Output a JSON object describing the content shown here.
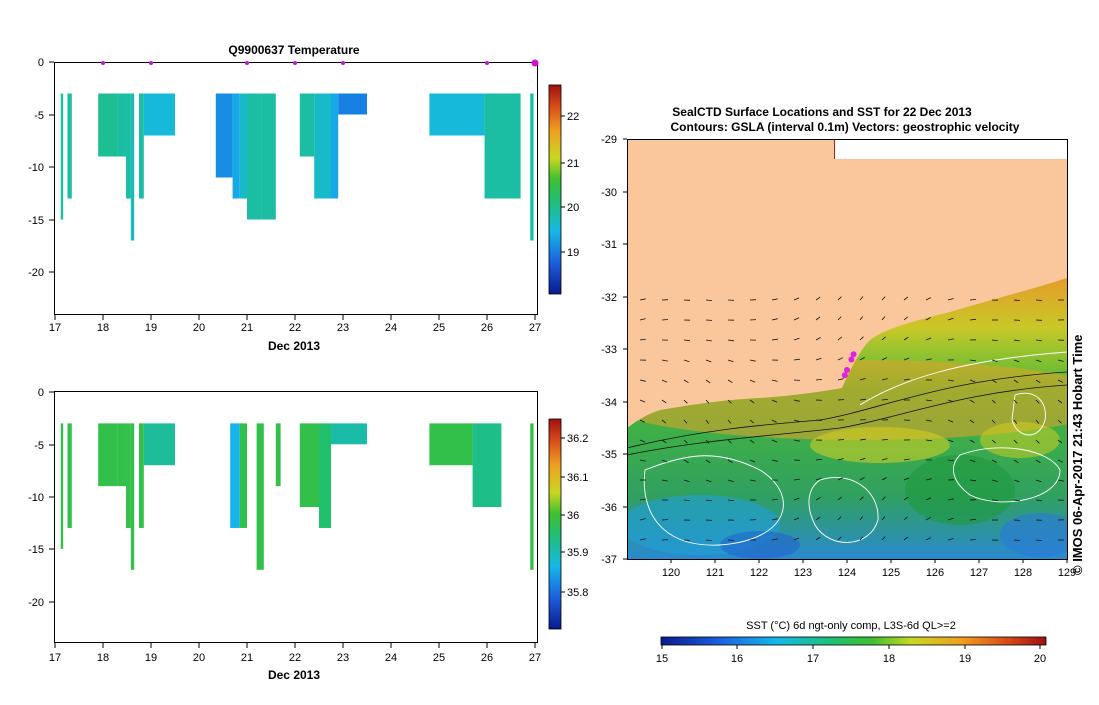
{
  "top_chart": {
    "title": "Q9900637  Temperature",
    "xlabel": "Dec 2013",
    "x_ticks": [
      "17",
      "18",
      "19",
      "20",
      "21",
      "22",
      "23",
      "24",
      "25",
      "26",
      "27"
    ],
    "y_ticks": [
      "0",
      "-5",
      "-10",
      "-15",
      "-20"
    ],
    "colorbar_ticks": [
      "22",
      "21",
      "20",
      "19"
    ]
  },
  "bottom_chart": {
    "title": "",
    "xlabel": "Dec 2013",
    "x_ticks": [
      "17",
      "18",
      "19",
      "20",
      "21",
      "22",
      "23",
      "24",
      "25",
      "26",
      "27"
    ],
    "y_ticks": [
      "0",
      "-5",
      "-10",
      "-15",
      "-20"
    ],
    "colorbar_ticks": [
      "36.2",
      "36.1",
      "36",
      "35.9",
      "35.8"
    ]
  },
  "map": {
    "title_line1": "SealCTD Surface Locations and SST for 22 Dec 2013",
    "title_line2": "Contours: GSLA (interval 0.1m) Vectors: geostrophic velocity",
    "lon_ticks": [
      "120",
      "121",
      "122",
      "123",
      "124",
      "125",
      "126",
      "127",
      "128",
      "129"
    ],
    "lat_ticks": [
      "-29",
      "-30",
      "-31",
      "-32",
      "-33",
      "-34",
      "-35",
      "-36",
      "-37"
    ],
    "colorbar_label": "SST (°C) 6d ngt-only comp, L3S-6d QL>=2",
    "colorbar_ticks": [
      "15",
      "16",
      "17",
      "18",
      "19",
      "20"
    ],
    "credit": "© IMOS 06-Apr-2017 21:43 Hobart Time"
  },
  "chart_data": [
    {
      "type": "heatmap",
      "title": "Q9900637  Temperature",
      "xlabel": "Dec 2013",
      "ylabel": "",
      "xlim": [
        17,
        27
      ],
      "ylim": [
        -24,
        0
      ],
      "colorbar_range": [
        18.3,
        22.7
      ],
      "profile_markers_x": [
        18.0,
        19.0,
        21.0,
        22.0,
        23.0,
        26.0,
        27.0
      ],
      "profiles": [
        {
          "x0": 17.12,
          "x1": 17.17,
          "top": -3,
          "bottom": -15,
          "value": 20.0
        },
        {
          "x0": 17.26,
          "x1": 17.35,
          "top": -3,
          "bottom": -13,
          "value": 20.0
        },
        {
          "x0": 17.9,
          "x1": 18.3,
          "top": -3,
          "bottom": -9,
          "value": 20.1
        },
        {
          "x0": 18.3,
          "x1": 18.48,
          "top": -3,
          "bottom": -9,
          "value": 20.0
        },
        {
          "x0": 18.48,
          "x1": 18.58,
          "top": -3,
          "bottom": -13,
          "value": 20.0
        },
        {
          "x0": 18.58,
          "x1": 18.65,
          "top": -3,
          "bottom": -17,
          "value": 19.9
        },
        {
          "x0": 18.75,
          "x1": 18.85,
          "top": -3,
          "bottom": -13,
          "value": 20.0
        },
        {
          "x0": 18.85,
          "x1": 19.5,
          "top": -3,
          "bottom": -7,
          "value": 19.7
        },
        {
          "x0": 20.35,
          "x1": 20.7,
          "top": -3,
          "bottom": -11,
          "value": 19.3
        },
        {
          "x0": 20.7,
          "x1": 20.85,
          "top": -3,
          "bottom": -13,
          "value": 19.5
        },
        {
          "x0": 20.85,
          "x1": 21.0,
          "top": -3,
          "bottom": -13,
          "value": 19.8
        },
        {
          "x0": 21.0,
          "x1": 21.3,
          "top": -3,
          "bottom": -15,
          "value": 20.0
        },
        {
          "x0": 21.3,
          "x1": 21.6,
          "top": -3,
          "bottom": -15,
          "value": 20.0
        },
        {
          "x0": 22.1,
          "x1": 22.4,
          "top": -3,
          "bottom": -9,
          "value": 20.0
        },
        {
          "x0": 22.4,
          "x1": 22.75,
          "top": -3,
          "bottom": -13,
          "value": 19.8
        },
        {
          "x0": 22.75,
          "x1": 22.9,
          "top": -3,
          "bottom": -13,
          "value": 19.5
        },
        {
          "x0": 22.9,
          "x1": 23.5,
          "top": -3,
          "bottom": -5,
          "value": 19.2
        },
        {
          "x0": 24.8,
          "x1": 25.95,
          "top": -3,
          "bottom": -7,
          "value": 19.7
        },
        {
          "x0": 25.95,
          "x1": 26.7,
          "top": -3,
          "bottom": -13,
          "value": 20.0
        },
        {
          "x0": 26.9,
          "x1": 26.97,
          "top": -3,
          "bottom": -17,
          "value": 20.0
        }
      ]
    },
    {
      "type": "heatmap",
      "title": "",
      "xlabel": "Dec 2013",
      "ylabel": "",
      "xlim": [
        17,
        27
      ],
      "ylim": [
        -24,
        0
      ],
      "colorbar_range": [
        35.7,
        36.25
      ],
      "profiles": [
        {
          "x0": 17.12,
          "x1": 17.17,
          "top": -3,
          "bottom": -15,
          "value": 35.98
        },
        {
          "x0": 17.26,
          "x1": 17.35,
          "top": -3,
          "bottom": -13,
          "value": 35.98
        },
        {
          "x0": 17.9,
          "x1": 18.3,
          "top": -3,
          "bottom": -9,
          "value": 35.98
        },
        {
          "x0": 18.3,
          "x1": 18.48,
          "top": -3,
          "bottom": -9,
          "value": 35.98
        },
        {
          "x0": 18.48,
          "x1": 18.58,
          "top": -3,
          "bottom": -13,
          "value": 35.98
        },
        {
          "x0": 18.58,
          "x1": 18.65,
          "top": -3,
          "bottom": -17,
          "value": 35.98
        },
        {
          "x0": 18.75,
          "x1": 18.85,
          "top": -3,
          "bottom": -13,
          "value": 35.98
        },
        {
          "x0": 18.85,
          "x1": 19.5,
          "top": -3,
          "bottom": -7,
          "value": 35.92
        },
        {
          "x0": 20.65,
          "x1": 20.85,
          "top": -3,
          "bottom": -13,
          "value": 35.86
        },
        {
          "x0": 20.85,
          "x1": 21.0,
          "top": -3,
          "bottom": -13,
          "value": 35.98
        },
        {
          "x0": 21.2,
          "x1": 21.35,
          "top": -3,
          "bottom": -17,
          "value": 35.98
        },
        {
          "x0": 21.6,
          "x1": 21.7,
          "top": -3,
          "bottom": -9,
          "value": 35.98
        },
        {
          "x0": 22.1,
          "x1": 22.5,
          "top": -3,
          "bottom": -11,
          "value": 35.98
        },
        {
          "x0": 22.5,
          "x1": 22.75,
          "top": -3,
          "bottom": -13,
          "value": 35.95
        },
        {
          "x0": 22.75,
          "x1": 23.5,
          "top": -3,
          "bottom": -5,
          "value": 35.91
        },
        {
          "x0": 24.8,
          "x1": 25.7,
          "top": -3,
          "bottom": -7,
          "value": 35.98
        },
        {
          "x0": 25.7,
          "x1": 26.3,
          "top": -3,
          "bottom": -11,
          "value": 35.93
        },
        {
          "x0": 26.9,
          "x1": 26.97,
          "top": -3,
          "bottom": -17,
          "value": 35.98
        }
      ]
    },
    {
      "type": "heatmap",
      "title": "SealCTD Surface Locations and SST for 22 Dec 2013",
      "xlabel": "",
      "ylabel": "",
      "xlim": [
        119,
        129
      ],
      "ylim": [
        -37,
        -29
      ],
      "colorbar_range": [
        15,
        20
      ],
      "seal_positions": [
        {
          "lon": 124.0,
          "lat": -33.4
        },
        {
          "lon": 124.1,
          "lat": -33.2
        },
        {
          "lon": 124.15,
          "lat": -33.1
        },
        {
          "lon": 123.95,
          "lat": -33.5
        }
      ]
    }
  ]
}
